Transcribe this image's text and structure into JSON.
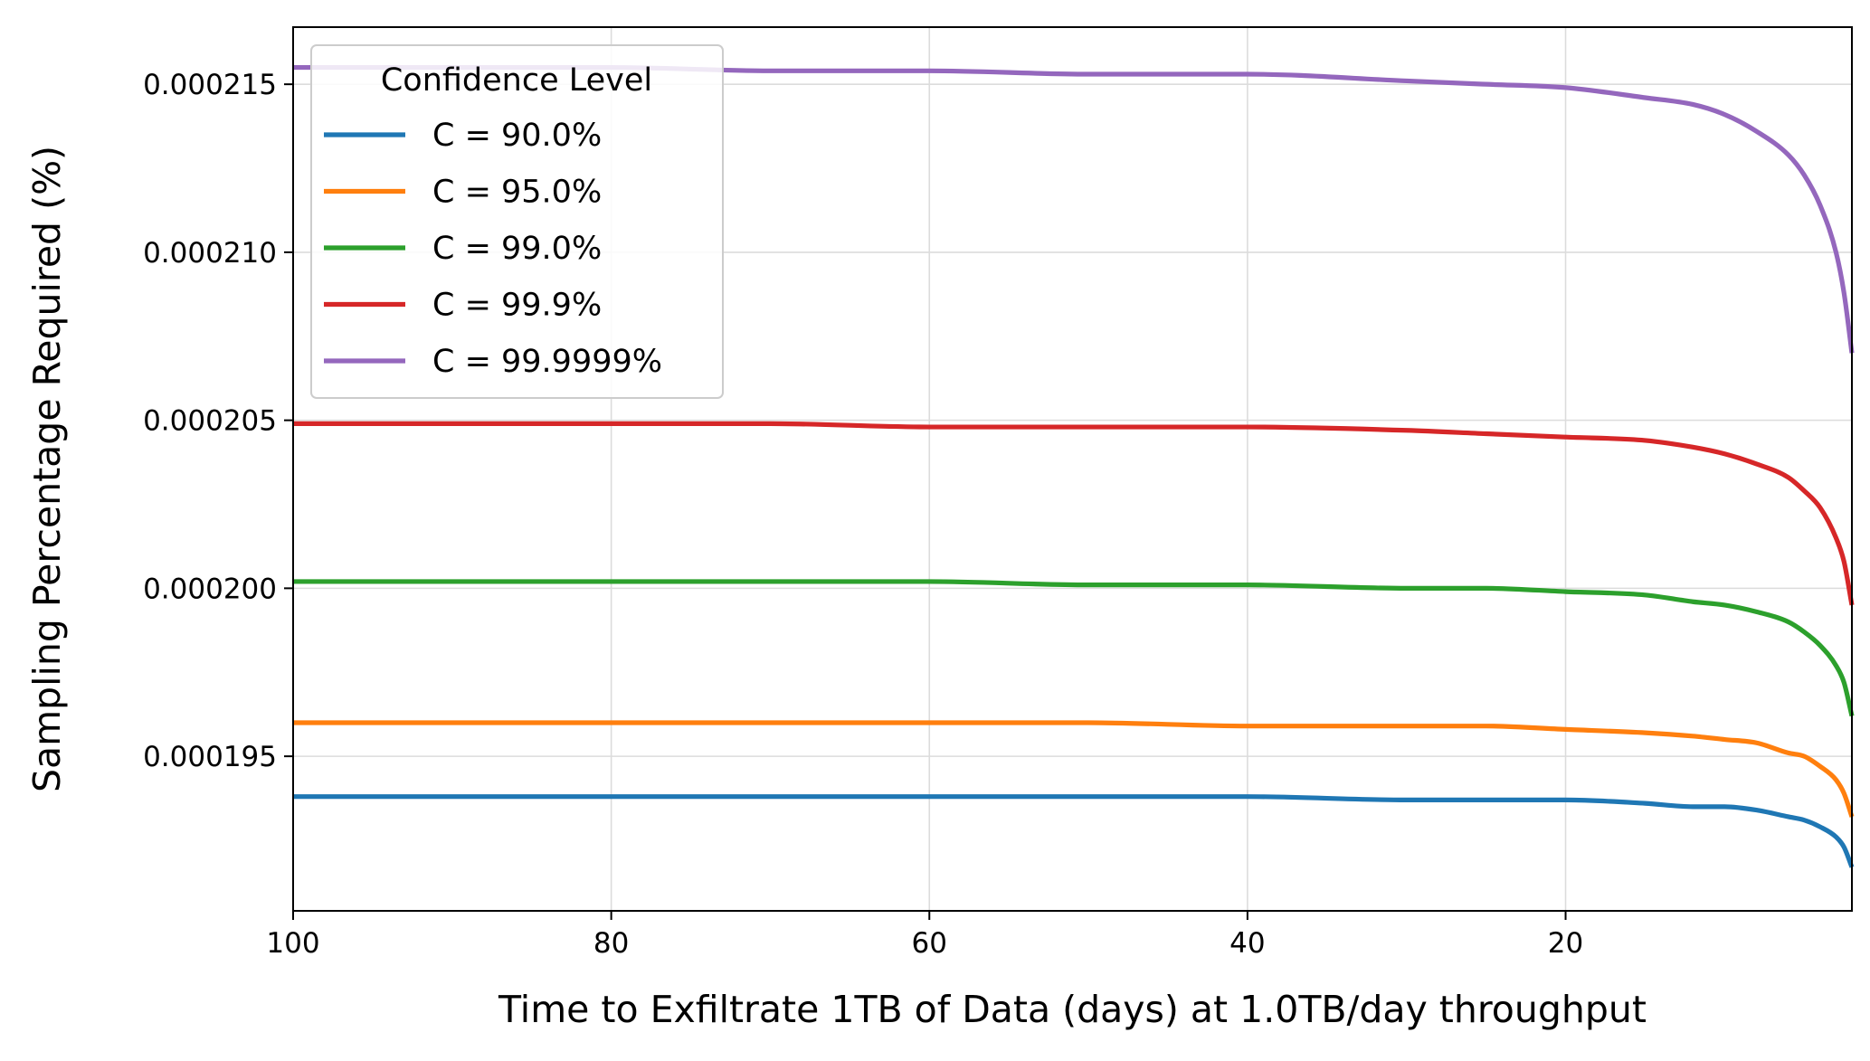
{
  "chart_data": {
    "type": "line",
    "title": "",
    "xlabel": "Time to Exfiltrate 1TB of Data (days) at 1.0TB/day throughput",
    "ylabel": "Sampling Percentage Required (%)",
    "x_inverted": true,
    "xlim": [
      100,
      2
    ],
    "ylim": [
      0.0001904,
      0.0002167
    ],
    "x_ticks": [
      100,
      80,
      60,
      40,
      20
    ],
    "x_tick_labels": [
      "100",
      "80",
      "60",
      "40",
      "20"
    ],
    "y_ticks": [
      0.000195,
      0.0002,
      0.000205,
      0.00021,
      0.000215
    ],
    "y_tick_labels": [
      "0.000195",
      "0.000200",
      "0.000205",
      "0.000210",
      "0.000215"
    ],
    "grid": true,
    "legend": {
      "title": "Confidence Level",
      "placement": "top-left"
    },
    "x": [
      100,
      90,
      80,
      70,
      60,
      50,
      40,
      30,
      25,
      20,
      15,
      12,
      10,
      8,
      6,
      5,
      4,
      3,
      2.5,
      2
    ],
    "series": [
      {
        "name": "C = 90.0%",
        "color": "#1f77b4",
        "values": [
          0.0001938,
          0.0001938,
          0.0001938,
          0.0001938,
          0.0001938,
          0.0001938,
          0.0001938,
          0.0001937,
          0.0001937,
          0.0001937,
          0.0001936,
          0.0001935,
          0.0001935,
          0.0001934,
          0.0001932,
          0.0001931,
          0.0001929,
          0.0001926,
          0.0001923,
          0.0001917
        ]
      },
      {
        "name": "C = 95.0%",
        "color": "#ff7f0e",
        "values": [
          0.000196,
          0.000196,
          0.000196,
          0.000196,
          0.000196,
          0.000196,
          0.0001959,
          0.0001959,
          0.0001959,
          0.0001958,
          0.0001957,
          0.0001956,
          0.0001955,
          0.0001954,
          0.0001951,
          0.000195,
          0.0001947,
          0.0001943,
          0.0001939,
          0.0001932
        ]
      },
      {
        "name": "C = 99.0%",
        "color": "#2ca02c",
        "values": [
          0.0002002,
          0.0002002,
          0.0002002,
          0.0002002,
          0.0002002,
          0.0002001,
          0.0002001,
          0.0002,
          0.0002,
          0.0001999,
          0.0001998,
          0.0001996,
          0.0001995,
          0.0001993,
          0.000199,
          0.0001987,
          0.0001983,
          0.0001977,
          0.0001972,
          0.0001962
        ]
      },
      {
        "name": "C = 99.9%",
        "color": "#d62728",
        "values": [
          0.0002049,
          0.0002049,
          0.0002049,
          0.0002049,
          0.0002048,
          0.0002048,
          0.0002048,
          0.0002047,
          0.0002046,
          0.0002045,
          0.0002044,
          0.0002042,
          0.000204,
          0.0002037,
          0.0002033,
          0.0002029,
          0.0002024,
          0.0002015,
          0.0002008,
          0.0001995
        ]
      },
      {
        "name": "C = 99.9999%",
        "color": "#9467bd",
        "values": [
          0.0002155,
          0.0002155,
          0.0002155,
          0.0002154,
          0.0002154,
          0.0002153,
          0.0002153,
          0.0002151,
          0.000215,
          0.0002149,
          0.0002146,
          0.0002144,
          0.0002141,
          0.0002136,
          0.0002129,
          0.0002123,
          0.0002114,
          0.00021,
          0.0002088,
          0.000207
        ]
      }
    ]
  }
}
